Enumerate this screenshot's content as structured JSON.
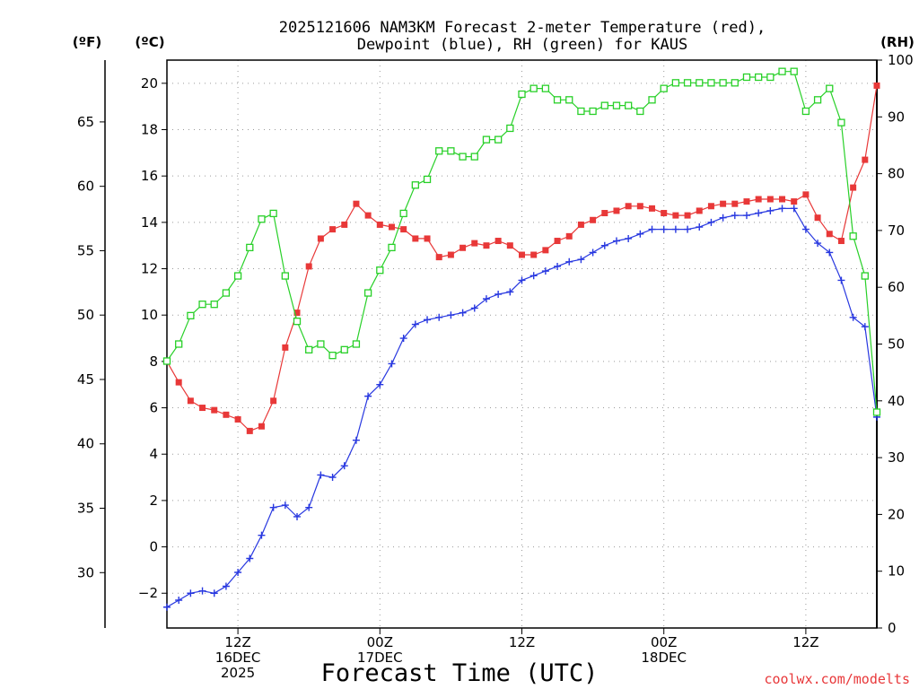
{
  "chart_data": {
    "type": "line",
    "title_line1": "2025121606 NAM3KM Forecast 2-meter Temperature (red),",
    "title_line2": "Dewpoint (blue), RH (green) for KAUS",
    "xlabel": "Forecast Time (UTC)",
    "credit": "coolwx.com/modelts",
    "units": {
      "fahrenheit": "(ºF)",
      "celsius": "(ºC)",
      "rh": "(RH)"
    },
    "x_range_hours": [
      6,
      66
    ],
    "celsius_range": [
      -3.5,
      21
    ],
    "rh_range": [
      0,
      100
    ],
    "celsius_ticks": [
      "−2",
      "0",
      "2",
      "4",
      "6",
      "8",
      "10",
      "12",
      "14",
      "16",
      "18",
      "20"
    ],
    "fahrenheit_ticks": [
      "30",
      "35",
      "40",
      "45",
      "50",
      "55",
      "60",
      "65"
    ],
    "rh_ticks": [
      "0",
      "10",
      "20",
      "30",
      "40",
      "50",
      "60",
      "70",
      "80",
      "90",
      "100"
    ],
    "x_ticks": [
      {
        "hour": 12,
        "lines": [
          "12Z",
          "16DEC",
          "2025"
        ]
      },
      {
        "hour": 24,
        "lines": [
          "00Z",
          "17DEC"
        ]
      },
      {
        "hour": 36,
        "lines": [
          "12Z"
        ]
      },
      {
        "hour": 48,
        "lines": [
          "00Z",
          "18DEC"
        ]
      },
      {
        "hour": 60,
        "lines": [
          "12Z"
        ]
      }
    ],
    "x_hours": [
      6,
      7,
      8,
      9,
      10,
      11,
      12,
      13,
      14,
      15,
      16,
      17,
      18,
      19,
      20,
      21,
      22,
      23,
      24,
      25,
      26,
      27,
      28,
      29,
      30,
      31,
      32,
      33,
      34,
      35,
      36,
      37,
      38,
      39,
      40,
      41,
      42,
      43,
      44,
      45,
      46,
      47,
      48,
      49,
      50,
      51,
      52,
      53,
      54,
      55,
      56,
      57,
      58,
      59,
      60,
      61,
      62,
      63,
      64,
      65,
      66
    ],
    "series": [
      {
        "name": "Temperature (°C)",
        "color": "#e83838",
        "marker": "filled-square",
        "axis": "celsius",
        "values": [
          8.0,
          7.1,
          6.3,
          6.0,
          5.9,
          5.7,
          5.5,
          5.0,
          5.2,
          6.3,
          8.6,
          10.1,
          12.1,
          13.3,
          13.7,
          13.9,
          14.8,
          14.3,
          13.9,
          13.8,
          13.7,
          13.3,
          13.3,
          12.5,
          12.6,
          12.9,
          13.1,
          13.0,
          13.2,
          13.0,
          12.6,
          12.6,
          12.8,
          13.2,
          13.4,
          13.9,
          14.1,
          14.4,
          14.5,
          14.7,
          14.7,
          14.6,
          14.4,
          14.3,
          14.3,
          14.5,
          14.7,
          14.8,
          14.8,
          14.9,
          15.0,
          15.0,
          15.0,
          14.9,
          15.2,
          14.2,
          13.5,
          13.2,
          15.5,
          16.7,
          19.9
        ]
      },
      {
        "name": "Dewpoint (°C)",
        "color": "#2838e0",
        "marker": "plus",
        "axis": "celsius",
        "values": [
          -2.6,
          -2.3,
          -2.0,
          -1.9,
          -2.0,
          -1.7,
          -1.1,
          -0.5,
          0.5,
          1.7,
          1.8,
          1.3,
          1.7,
          3.1,
          3.0,
          3.5,
          4.6,
          6.5,
          7.0,
          7.9,
          9.0,
          9.6,
          9.8,
          9.9,
          10.0,
          10.1,
          10.3,
          10.7,
          10.9,
          11.0,
          11.5,
          11.7,
          11.9,
          12.1,
          12.3,
          12.4,
          12.7,
          13.0,
          13.2,
          13.3,
          13.5,
          13.7,
          13.7,
          13.7,
          13.7,
          13.8,
          14.0,
          14.2,
          14.3,
          14.3,
          14.4,
          14.5,
          14.6,
          14.6,
          13.7,
          13.1,
          12.7,
          11.5,
          9.9,
          9.5,
          5.6
        ]
      },
      {
        "name": "RH (%)",
        "color": "#28d028",
        "marker": "open-square",
        "axis": "rh",
        "values": [
          47,
          50,
          55,
          57,
          57,
          59,
          62,
          67,
          72,
          73,
          62,
          54,
          49,
          50,
          48,
          49,
          50,
          59,
          63,
          67,
          73,
          78,
          79,
          84,
          84,
          83,
          83,
          86,
          86,
          88,
          94,
          95,
          95,
          93,
          93,
          91,
          91,
          92,
          92,
          92,
          91,
          93,
          95,
          96,
          96,
          96,
          96,
          96,
          96,
          97,
          97,
          97,
          98,
          98,
          91,
          93,
          95,
          89,
          69,
          62,
          38
        ]
      }
    ]
  }
}
